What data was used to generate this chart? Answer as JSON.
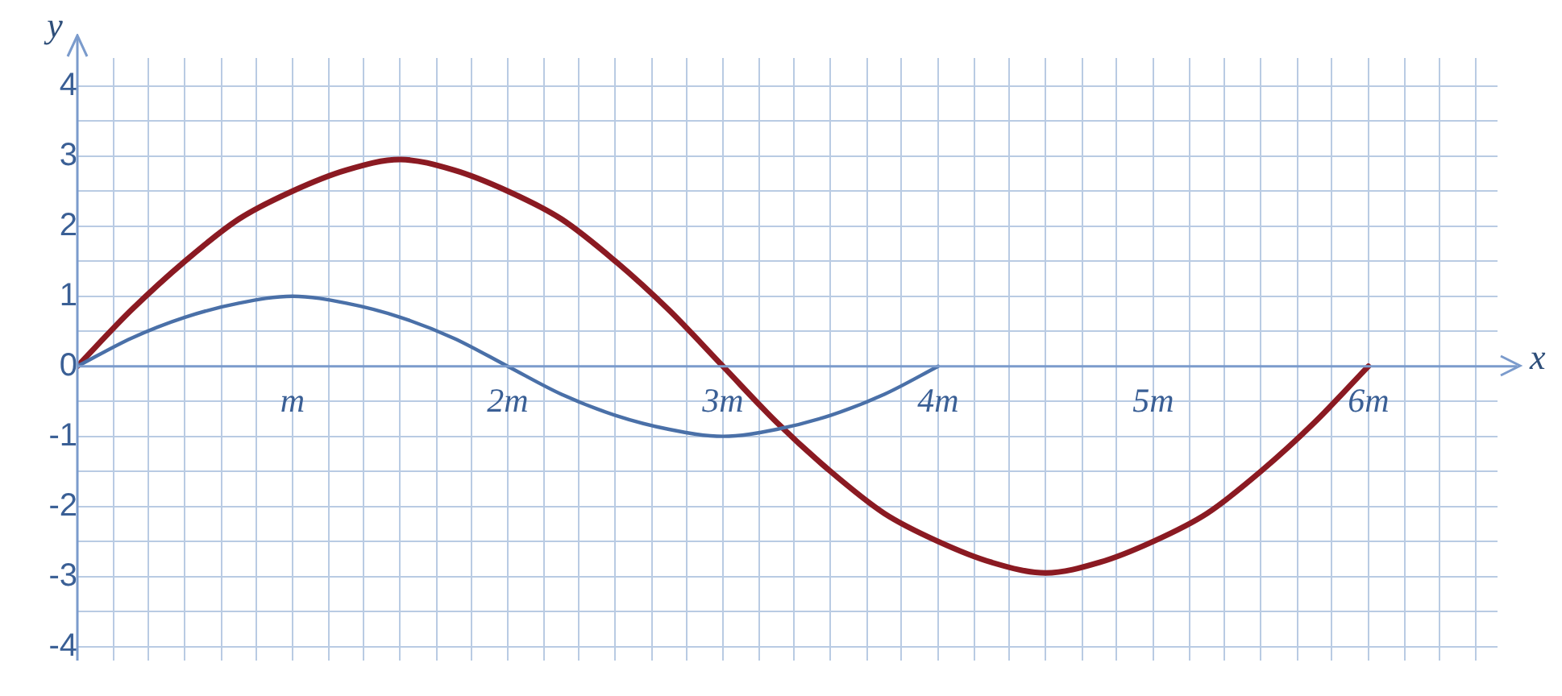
{
  "chart_data": {
    "type": "line",
    "xlabel": "x",
    "ylabel": "y",
    "xlim": [
      0,
      6.6
    ],
    "ylim": [
      -4.2,
      4.4
    ],
    "xticks": [
      {
        "value": 0,
        "label": null
      },
      {
        "value": 0.17,
        "label": null
      },
      {
        "value": 0.33,
        "label": null
      },
      {
        "value": 0.5,
        "label": null
      },
      {
        "value": 0.67,
        "label": null
      },
      {
        "value": 0.83,
        "label": null
      },
      {
        "value": 1,
        "label": "m"
      },
      {
        "value": 1.17,
        "label": null
      },
      {
        "value": 1.33,
        "label": null
      },
      {
        "value": 1.5,
        "label": null
      },
      {
        "value": 1.67,
        "label": null
      },
      {
        "value": 1.83,
        "label": null
      },
      {
        "value": 2,
        "label": "2m"
      },
      {
        "value": 2.17,
        "label": null
      },
      {
        "value": 2.33,
        "label": null
      },
      {
        "value": 2.5,
        "label": null
      },
      {
        "value": 2.67,
        "label": null
      },
      {
        "value": 2.83,
        "label": null
      },
      {
        "value": 3,
        "label": "3m"
      },
      {
        "value": 3.17,
        "label": null
      },
      {
        "value": 3.33,
        "label": null
      },
      {
        "value": 3.5,
        "label": null
      },
      {
        "value": 3.67,
        "label": null
      },
      {
        "value": 3.83,
        "label": null
      },
      {
        "value": 4,
        "label": "4m"
      },
      {
        "value": 4.17,
        "label": null
      },
      {
        "value": 4.33,
        "label": null
      },
      {
        "value": 4.5,
        "label": null
      },
      {
        "value": 4.67,
        "label": null
      },
      {
        "value": 4.83,
        "label": null
      },
      {
        "value": 5,
        "label": "5m"
      },
      {
        "value": 5.17,
        "label": null
      },
      {
        "value": 5.33,
        "label": null
      },
      {
        "value": 5.5,
        "label": null
      },
      {
        "value": 5.67,
        "label": null
      },
      {
        "value": 5.83,
        "label": null
      },
      {
        "value": 6,
        "label": "6m"
      },
      {
        "value": 6.17,
        "label": null
      },
      {
        "value": 6.33,
        "label": null
      },
      {
        "value": 6.5,
        "label": null
      }
    ],
    "yticks": [
      -4,
      {
        "value": -3.5,
        "label": null
      },
      -3,
      {
        "value": -2.5,
        "label": null
      },
      -2,
      {
        "value": -1.5,
        "label": null
      },
      -1,
      {
        "value": -0.5,
        "label": null
      },
      0,
      {
        "value": 0.5,
        "label": null
      },
      1,
      {
        "value": 1.5,
        "label": null
      },
      2,
      {
        "value": 2.5,
        "label": null
      },
      3,
      {
        "value": 3.5,
        "label": null
      },
      4
    ],
    "grid": true,
    "legend": false,
    "marker": "none",
    "line_style": "solid",
    "series": [
      {
        "color": "#4a70a8",
        "x": [
          0,
          0.25,
          0.5,
          0.75,
          1,
          1.25,
          1.5,
          1.75,
          2,
          2.25,
          2.5,
          2.75,
          3,
          3.25,
          3.5,
          3.75,
          4
        ],
        "values": [
          0,
          0.4,
          0.7,
          0.9,
          1,
          0.9,
          0.7,
          0.4,
          0,
          -0.4,
          -0.7,
          -0.9,
          -1,
          -0.9,
          -0.7,
          -0.4,
          0
        ]
      },
      {
        "color": "#8b1a22",
        "x": [
          0,
          0.25,
          0.5,
          0.75,
          1,
          1.25,
          1.5,
          1.75,
          2,
          2.25,
          2.5,
          2.75,
          3,
          3.25,
          3.5,
          3.75,
          4,
          4.25,
          4.5,
          4.75,
          5,
          5.25,
          5.5,
          5.75,
          6
        ],
        "values": [
          0,
          0.8,
          1.5,
          2.1,
          2.5,
          2.8,
          2.95,
          2.8,
          2.5,
          2.1,
          1.5,
          0.8,
          0,
          -0.8,
          -1.5,
          -2.1,
          -2.5,
          -2.8,
          -2.95,
          -2.8,
          -2.5,
          -2.1,
          -1.5,
          -0.8,
          0
        ]
      }
    ]
  }
}
